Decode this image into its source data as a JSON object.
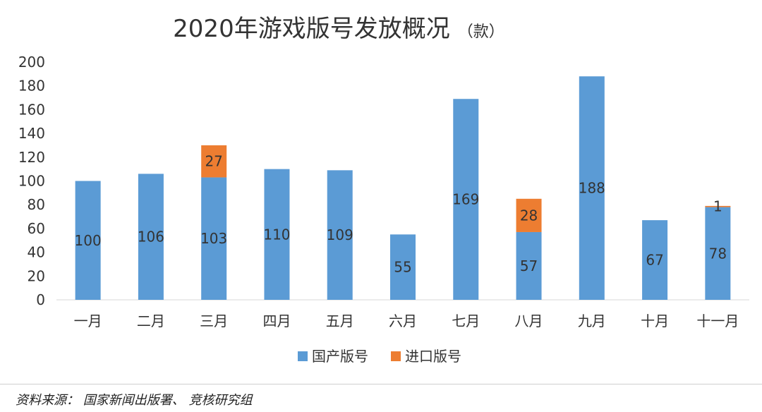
{
  "chart_data": {
    "type": "bar",
    "stacked": true,
    "title": "2020年游戏版号发放概况",
    "unit": "（款）",
    "categories": [
      "一月",
      "二月",
      "三月",
      "四月",
      "五月",
      "六月",
      "七月",
      "八月",
      "九月",
      "十月",
      "十一月"
    ],
    "series": [
      {
        "name": "国产版号",
        "color": "#5B9BD5",
        "values": [
          100,
          106,
          103,
          110,
          109,
          55,
          169,
          57,
          188,
          67,
          78
        ]
      },
      {
        "name": "进口版号",
        "color": "#ED7D31",
        "values": [
          0,
          0,
          27,
          0,
          0,
          0,
          0,
          28,
          0,
          0,
          1
        ]
      }
    ],
    "ylim": [
      0,
      200
    ],
    "yticks": [
      "0",
      "20",
      "40",
      "60",
      "80",
      "100",
      "120",
      "140",
      "160",
      "180",
      "200"
    ],
    "grid": false,
    "legend_position": "bottom"
  },
  "source": "资料来源： 国家新闻出版署、 竞核研究组"
}
